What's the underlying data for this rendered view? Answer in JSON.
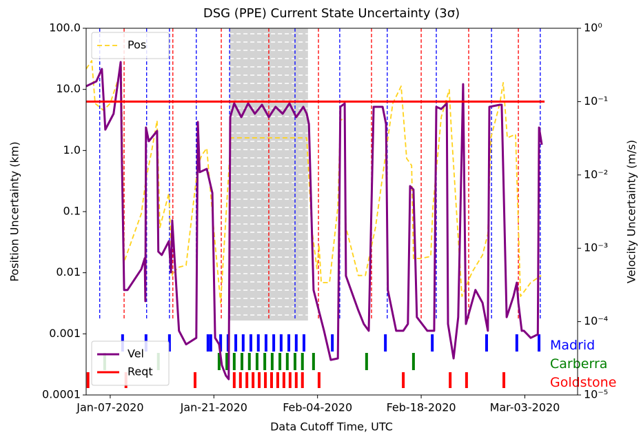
{
  "chart_data": {
    "type": "line",
    "title": "DSG (PPE) Current State Uncertainty (3σ)",
    "xlabel": "Data Cutoff Time, UTC",
    "ylabel": "Position Uncertainty (km)",
    "y2label": "Velocity Uncertainty (m/s)",
    "xlim": [
      "2020-01-03T18:00Z",
      "2020-03-10T03:00Z"
    ],
    "xticks": [
      {
        "value": "2020-01-07T00:00Z",
        "label": "Jan-07-2020"
      },
      {
        "value": "2020-01-21T00:00Z",
        "label": "Jan-21-2020"
      },
      {
        "value": "2020-02-04T00:00Z",
        "label": "Feb-04-2020"
      },
      {
        "value": "2020-02-18T00:00Z",
        "label": "Feb-18-2020"
      },
      {
        "value": "2020-03-03T00:00Z",
        "label": "Mar-03-2020"
      }
    ],
    "ylim": [
      0.0001,
      100
    ],
    "ylog": true,
    "yticks": [
      0.0001,
      0.001,
      0.01,
      0.1,
      {
        "value": 1,
        "label": "1.0"
      },
      {
        "value": 10,
        "label": "10.0"
      },
      {
        "value": 100,
        "label": "100.0"
      }
    ],
    "y2lim": [
      1e-05,
      1
    ],
    "y2log": true,
    "y2ticks": [
      {
        "value": 1e-05,
        "label": "10⁻⁵"
      },
      {
        "value": 0.0001,
        "label": "10⁻⁴"
      },
      {
        "value": 0.001,
        "label": "10⁻³"
      },
      {
        "value": 0.01,
        "label": "10⁻²"
      },
      {
        "value": 0.1,
        "label": "10⁻¹"
      },
      {
        "value": 1,
        "label": "10⁰"
      }
    ],
    "shaded": {
      "x": [
        "2020-01-23T03:00Z",
        "2020-02-02T17:00Z"
      ],
      "color": "#d3d3d3"
    },
    "event_lines": [
      {
        "color": "#0000ff",
        "x": [
          "2020-01-05T14:00Z",
          "2020-01-11T22:00Z",
          "2020-01-15T00:00Z",
          "2020-01-18T15:00Z",
          "2020-01-23T03:00Z",
          "2020-01-31T23:00Z",
          "2020-02-07T00:00Z",
          "2020-02-13T10:00Z",
          "2020-02-20T01:00Z",
          "2020-02-27T12:00Z",
          "2020-03-05T02:00Z"
        ]
      },
      {
        "color": "#ff0000",
        "x": [
          "2020-01-08T21:00Z",
          "2020-01-15T11:00Z",
          "2020-01-22T00:00Z",
          "2020-01-28T10:00Z",
          "2020-02-04T03:00Z",
          "2020-02-11T07:00Z",
          "2020-02-18T00:00Z",
          "2020-02-24T10:00Z",
          "2020-03-02T03:00Z"
        ]
      }
    ],
    "series": [
      {
        "name": "Pos",
        "color": "#ffd21a",
        "axis": "y",
        "dashed": true,
        "legend": "upper left",
        "x": [
          "2020-01-03T18:00Z",
          "2020-01-04T12:00Z",
          "2020-01-04T23:00Z",
          "2020-01-06T02:00Z",
          "2020-01-07T00:00Z",
          "2020-01-07T22:00Z",
          "2020-01-08T12:00Z",
          "2020-01-08T21:00Z",
          "2020-01-11T05:00Z",
          "2020-01-11T20:00Z",
          "2020-01-12T14:00Z",
          "2020-01-13T08:00Z",
          "2020-01-13T17:00Z",
          "2020-01-14T22:00Z",
          "2020-01-15T09:00Z",
          "2020-01-16T03:00Z",
          "2020-01-17T06:00Z",
          "2020-01-18T20:00Z",
          "2020-01-19T09:00Z",
          "2020-01-20T01:00Z",
          "2020-01-20T23:00Z",
          "2020-01-21T22:00Z",
          "2020-01-23T07:00Z",
          "2020-02-02T13:00Z",
          "2020-02-03T05:00Z",
          "2020-02-03T22:00Z",
          "2020-02-04T05:00Z",
          "2020-02-04T12:00Z",
          "2020-02-05T15:00Z",
          "2020-02-06T18:00Z",
          "2020-02-07T02:00Z",
          "2020-02-07T16:00Z",
          "2020-02-07T20:00Z",
          "2020-02-09T12:00Z",
          "2020-02-10T11:00Z",
          "2020-02-11T20:00Z",
          "2020-02-13T06:00Z",
          "2020-02-14T04:00Z",
          "2020-02-15T07:00Z",
          "2020-02-16T01:00Z",
          "2020-02-16T17:00Z",
          "2020-02-16T23:00Z",
          "2020-02-17T22:00Z",
          "2020-02-19T07:00Z",
          "2020-02-19T14:00Z",
          "2020-02-20T17:00Z",
          "2020-02-21T19:00Z",
          "2020-02-22T02:00Z",
          "2020-02-23T12:00Z",
          "2020-02-24T21:00Z",
          "2020-02-26T07:00Z",
          "2020-02-27T00:00Z",
          "2020-02-27T10:00Z",
          "2020-02-28T15:00Z",
          "2020-02-29T02:00Z",
          "2020-02-29T15:00Z",
          "2020-03-01T18:00Z",
          "2020-03-02T10:00Z",
          "2020-03-03T19:00Z",
          "2020-03-05T05:00Z"
        ],
        "values": [
          21.6,
          29.5,
          5.9,
          4.55,
          5.9,
          12.9,
          24.6,
          0.0151,
          0.093,
          0.34,
          0.96,
          3.08,
          0.055,
          0.2,
          0.009,
          0.0122,
          0.0132,
          0.57,
          0.84,
          1.09,
          0.055,
          0.0032,
          1.61,
          1.61,
          0.055,
          0.0116,
          0.029,
          0.0069,
          0.0069,
          0.12,
          3.08,
          3.51,
          0.055,
          0.009,
          0.009,
          0.055,
          0.96,
          5.9,
          11.3,
          0.74,
          0.57,
          0.0171,
          0.0171,
          0.0185,
          0.12,
          3.51,
          9.9,
          2.09,
          0.0041,
          0.0102,
          0.0195,
          0.043,
          1.61,
          5.9,
          12.9,
          1.61,
          1.84,
          0.0041,
          0.0069,
          0.009
        ]
      },
      {
        "name": "Vel",
        "color": "#800080",
        "axis": "y2",
        "dashed": false,
        "legend": "lower left",
        "x": [
          "2020-01-03T18:00Z",
          "2020-01-05T03:00Z",
          "2020-01-05T21:00Z",
          "2020-01-06T08:00Z",
          "2020-01-07T11:00Z",
          "2020-01-08T10:00Z",
          "2020-01-08T14:00Z",
          "2020-01-08T21:00Z",
          "2020-01-09T08:00Z",
          "2020-01-11T05:00Z",
          "2020-01-11T16:00Z",
          "2020-01-11T18:00Z",
          "2020-01-11T20:00Z",
          "2020-01-12T05:00Z",
          "2020-01-13T08:00Z",
          "2020-01-13T12:00Z",
          "2020-01-13T23:00Z",
          "2020-01-14T22:00Z",
          "2020-01-15T05:00Z",
          "2020-01-15T09:00Z",
          "2020-01-16T07:00Z",
          "2020-01-17T06:00Z",
          "2020-01-18T15:00Z",
          "2020-01-18T20:00Z",
          "2020-01-19T02:00Z",
          "2020-01-20T01:00Z",
          "2020-01-20T19:00Z",
          "2020-01-21T04:00Z",
          "2020-01-21T17:00Z",
          "2020-01-22T02:00Z",
          "2020-01-22T15:00Z",
          "2020-01-23T00:00Z",
          "2020-01-23T05:00Z",
          "2020-01-23T18:00Z",
          "2020-01-24T17:00Z",
          "2020-01-25T15:00Z",
          "2020-01-26T13:00Z",
          "2020-01-27T12:00Z",
          "2020-01-28T10:00Z",
          "2020-01-29T08:00Z",
          "2020-01-30T07:00Z",
          "2020-01-31T05:00Z",
          "2020-02-01T03:00Z",
          "2020-02-02T02:00Z",
          "2020-02-02T13:00Z",
          "2020-02-02T20:00Z",
          "2020-02-03T11:00Z",
          "2020-02-04T21:00Z",
          "2020-02-05T19:00Z",
          "2020-02-06T18:00Z",
          "2020-02-07T02:00Z",
          "2020-02-07T16:00Z",
          "2020-02-07T20:00Z",
          "2020-02-09T12:00Z",
          "2020-02-10T06:00Z",
          "2020-02-10T22:00Z",
          "2020-02-11T14:00Z",
          "2020-02-12T19:00Z",
          "2020-02-13T06:00Z",
          "2020-02-13T12:00Z",
          "2020-02-14T15:00Z",
          "2020-02-15T14:00Z",
          "2020-02-16T05:00Z",
          "2020-02-16T12:00Z",
          "2020-02-16T23:00Z",
          "2020-02-17T10:00Z",
          "2020-02-18T20:00Z",
          "2020-02-19T18:00Z",
          "2020-02-20T01:00Z",
          "2020-02-20T17:00Z",
          "2020-02-21T11:00Z",
          "2020-02-21T15:00Z",
          "2020-02-22T09:00Z",
          "2020-02-23T00:00Z",
          "2020-02-23T16:00Z",
          "2020-02-24T01:00Z",
          "2020-02-25T08:00Z",
          "2020-02-26T07:00Z",
          "2020-02-27T00:00Z",
          "2020-02-27T05:00Z",
          "2020-02-28T15:00Z",
          "2020-02-28T21:00Z",
          "2020-02-29T13:00Z",
          "2020-03-01T11:00Z",
          "2020-03-01T22:00Z",
          "2020-03-02T03:00Z",
          "2020-03-02T14:00Z",
          "2020-03-02T21:00Z",
          "2020-03-03T19:00Z",
          "2020-03-04T18:00Z",
          "2020-03-04T22:00Z",
          "2020-03-05T07:00Z"
        ],
        "values": [
          0.162,
          0.189,
          0.279,
          0.0415,
          0.0684,
          0.346,
          0.015,
          0.00027,
          0.00027,
          0.00052,
          0.00073,
          0.00019,
          0.0443,
          0.0288,
          0.0398,
          0.0009,
          0.00081,
          0.00125,
          0.00047,
          0.00239,
          7.5e-05,
          4.9e-05,
          6e-05,
          0.0527,
          0.0109,
          0.0121,
          0.00567,
          6e-05,
          4.9e-05,
          2.54e-05,
          1.83e-05,
          1.64e-05,
          0.0614,
          0.0946,
          0.0614,
          0.0946,
          0.0684,
          0.0905,
          0.0614,
          0.0849,
          0.0684,
          0.0946,
          0.0614,
          0.0849,
          0.0684,
          0.0494,
          0.00027,
          7.5e-05,
          3.01e-05,
          3.15e-05,
          0.0849,
          0.0946,
          0.00042,
          0.000143,
          9.3e-05,
          7.5e-05,
          0.0849,
          0.0849,
          0.0494,
          0.00027,
          7.5e-05,
          7.5e-05,
          9.3e-05,
          0.00705,
          0.00632,
          0.000115,
          7.5e-05,
          7.5e-05,
          0.0849,
          0.0794,
          0.0946,
          9.3e-05,
          3.15e-05,
          0.000115,
          0.173,
          9.3e-05,
          0.00027,
          0.00018,
          7.5e-05,
          0.0849,
          0.0905,
          0.0905,
          0.000115,
          0.00022,
          0.00034,
          0.00018,
          7.5e-05,
          7.5e-05,
          6e-05,
          6.7e-05,
          0.0443,
          0.0258
        ]
      },
      {
        "name": "Reqt",
        "color": "#ff0000",
        "axis": "y2",
        "dashed": false,
        "legend": "lower left",
        "x": [
          "2020-01-03T18:00Z",
          "2020-03-05T16:00Z"
        ],
        "values": [
          0.1,
          0.1
        ]
      }
    ],
    "passes": [
      {
        "name": "Madrid",
        "color": "#0000ff",
        "x": [
          "2020-01-08T16:00Z",
          "2020-01-11T20:00Z",
          "2020-01-15T00:00Z",
          "2020-01-20T05:00Z",
          "2020-01-20T14:00Z",
          "2020-01-21T22:00Z",
          "2020-01-22T22:00Z",
          "2020-01-23T23:00Z",
          "2020-01-24T23:00Z",
          "2020-01-26T00:00Z",
          "2020-01-27T00:00Z",
          "2020-01-28T01:00Z",
          "2020-01-29T02:00Z",
          "2020-01-30T02:00Z",
          "2020-01-31T03:00Z",
          "2020-02-01T03:00Z",
          "2020-02-02T04:00Z",
          "2020-02-06T00:00Z",
          "2020-02-13T04:00Z",
          "2020-02-19T12:00Z",
          "2020-02-26T20:00Z",
          "2020-03-01T22:00Z",
          "2020-03-04T22:00Z"
        ]
      },
      {
        "name": "Carberra",
        "color": "#008000",
        "x": [
          "2020-01-06T06:00Z",
          "2020-01-13T12:00Z",
          "2020-01-21T17:00Z",
          "2020-01-22T18:00Z",
          "2020-01-23T18:00Z",
          "2020-01-24T19:00Z",
          "2020-01-25T19:00Z",
          "2020-01-26T20:00Z",
          "2020-01-27T21:00Z",
          "2020-01-28T21:00Z",
          "2020-01-29T22:00Z",
          "2020-01-30T22:00Z",
          "2020-01-31T23:00Z",
          "2020-02-01T23:00Z",
          "2020-02-03T11:00Z",
          "2020-02-10T15:00Z",
          "2020-02-16T23:00Z"
        ]
      },
      {
        "name": "Goldstone",
        "color": "#ff0000",
        "x": [
          "2020-01-04T00:00Z",
          "2020-01-09T03:00Z",
          "2020-01-18T11:00Z",
          "2020-01-23T18:00Z",
          "2020-01-24T14:00Z",
          "2020-01-25T11:00Z",
          "2020-01-26T07:00Z",
          "2020-01-27T03:00Z",
          "2020-01-27T23:00Z",
          "2020-01-28T19:00Z",
          "2020-01-29T15:00Z",
          "2020-01-30T11:00Z",
          "2020-01-31T07:00Z",
          "2020-02-01T03:00Z",
          "2020-02-01T23:00Z",
          "2020-02-04T05:00Z",
          "2020-02-15T14:00Z",
          "2020-02-21T22:00Z",
          "2020-02-24T03:00Z",
          "2020-02-29T04:00Z"
        ]
      }
    ]
  }
}
